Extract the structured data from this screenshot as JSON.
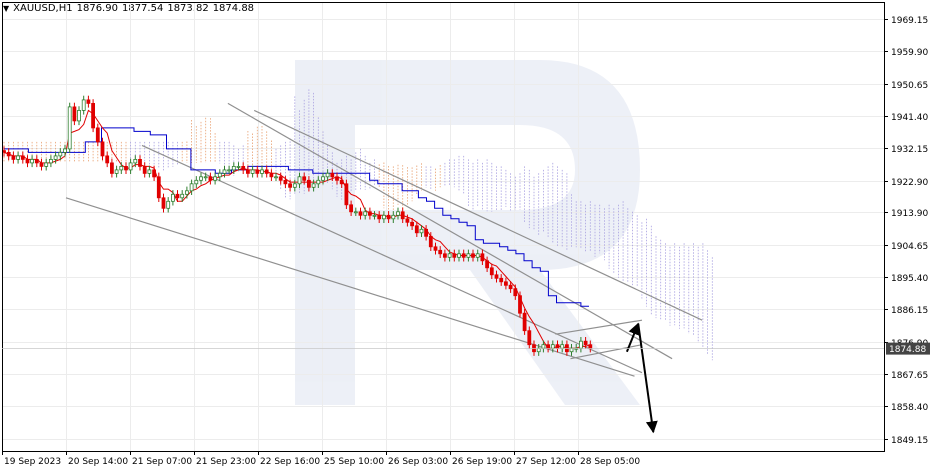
{
  "header": {
    "symbol": "XAUUSD,H1",
    "ohlc": [
      "1876.90",
      "1877.54",
      "1873.82",
      "1874.88"
    ]
  },
  "chart_data": {
    "type": "candlestick",
    "symbol": "XAUUSD",
    "timeframe": "H1",
    "ylim": [
      1845.6,
      1974.0
    ],
    "y_ticks": [
      "1969.15",
      "1959.90",
      "1950.65",
      "1941.40",
      "1932.15",
      "1922.90",
      "1913.90",
      "1904.65",
      "1895.40",
      "1886.15",
      "1876.90",
      "1867.65",
      "1858.40",
      "1849.15"
    ],
    "y_tick_values": [
      1969.15,
      1959.9,
      1950.65,
      1941.4,
      1932.15,
      1922.9,
      1913.9,
      1904.65,
      1895.4,
      1886.15,
      1876.9,
      1867.65,
      1858.4,
      1849.15
    ],
    "x_ticks": [
      "19 Sep 2023",
      "20 Sep 14:00",
      "21 Sep 07:00",
      "21 Sep 23:00",
      "22 Sep 16:00",
      "25 Sep 10:00",
      "26 Sep 03:00",
      "26 Sep 19:00",
      "27 Sep 12:00",
      "28 Sep 05:00"
    ],
    "current_price": "1874.88",
    "current_price_value": 1874.88,
    "colors": {
      "up": "#2f7f2f",
      "down": "#e00000",
      "tenkan": "#e00000",
      "kijun": "#0000cc",
      "cloud_a": "#e8a070",
      "cloud_b": "#a8a0e0",
      "trend": "#909090",
      "arrow": "#000000",
      "price_tag": "#444444"
    },
    "close_path": [
      1931,
      1930,
      1929,
      1930,
      1929,
      1928,
      1929,
      1928,
      1927,
      1928,
      1929,
      1930,
      1931,
      1932,
      1944,
      1940,
      1943,
      1946,
      1945,
      1938,
      1934,
      1930,
      1928,
      1925,
      1926,
      1927,
      1926,
      1928,
      1929,
      1927,
      1925,
      1926,
      1924,
      1918,
      1915,
      1917,
      1919,
      1918,
      1919,
      1920,
      1922,
      1923,
      1924,
      1924,
      1923,
      1924,
      1925,
      1926,
      1926,
      1927,
      1927,
      1926,
      1925,
      1926,
      1925,
      1926,
      1925,
      1924,
      1924,
      1923,
      1922,
      1921,
      1922,
      1924,
      1923,
      1921,
      1922,
      1923,
      1924,
      1925,
      1924,
      1923,
      1922,
      1916,
      1914,
      1914,
      1913,
      1914,
      1913,
      1913,
      1912,
      1913,
      1912,
      1913,
      1914,
      1912,
      1911,
      1910,
      1908,
      1909,
      1907,
      1904,
      1903,
      1902,
      1901,
      1902,
      1901,
      1902,
      1901,
      1902,
      1901,
      1902,
      1900,
      1898,
      1896,
      1895,
      1894,
      1893,
      1892,
      1890,
      1885,
      1880,
      1876,
      1874,
      1875,
      1876,
      1875,
      1876,
      1875,
      1876,
      1874,
      1875,
      1875,
      1877,
      1876,
      1875
    ],
    "kijun_path": [
      1932,
      1932,
      1932,
      1931,
      1931,
      1931,
      1931,
      1931,
      1931,
      1931,
      1934,
      1934,
      1938,
      1938,
      1938,
      1938,
      1937,
      1937,
      1936,
      1936,
      1932,
      1932,
      1932,
      1926,
      1926,
      1926,
      1925,
      1925,
      1926,
      1926,
      1927,
      1927,
      1927,
      1927,
      1927,
      1926,
      1926,
      1926,
      1925,
      1925,
      1925,
      1925,
      1925,
      1925,
      1925,
      1923,
      1922,
      1922,
      1922,
      1920,
      1920,
      1918,
      1917,
      1915,
      1913,
      1912,
      1911,
      1910,
      1906,
      1905,
      1905,
      1904,
      1903,
      1902,
      1900,
      1898,
      1897,
      1890,
      1888,
      1888,
      1888,
      1887
    ],
    "annotation_lines": [
      {
        "name": "channel-line-1",
        "from": [
          "19 Sep 23:00",
          1918
        ],
        "to": [
          "28 Sep 04:00",
          1867
        ]
      },
      {
        "name": "channel-line-2",
        "from": [
          "20 Sep 19:00",
          1933
        ],
        "to": [
          "28 Sep 06:00",
          1868
        ]
      },
      {
        "name": "channel-line-3",
        "from": [
          "21 Sep 17:00",
          1945
        ],
        "to": [
          "28 Sep 14:00",
          1872
        ]
      },
      {
        "name": "channel-line-4",
        "from": [
          "22 Sep 00:00",
          1943
        ],
        "to": [
          "28 Sep 22:00",
          1883
        ]
      },
      {
        "name": "flag-upper",
        "from": [
          "27 Sep 07:00",
          1879
        ],
        "to": [
          "28 Sep 06:00",
          1883
        ]
      },
      {
        "name": "flag-lower",
        "from": [
          "27 Sep 11:00",
          1872
        ],
        "to": [
          "28 Sep 06:00",
          1876
        ]
      }
    ],
    "arrows": [
      {
        "name": "arrow-up",
        "from": [
          "28 Sep 02:00",
          1874
        ],
        "to": [
          "28 Sep 05:00",
          1882
        ]
      },
      {
        "name": "arrow-down",
        "from": [
          "28 Sep 05:00",
          1882
        ],
        "to": [
          "28 Sep 09:00",
          1851
        ]
      }
    ]
  }
}
